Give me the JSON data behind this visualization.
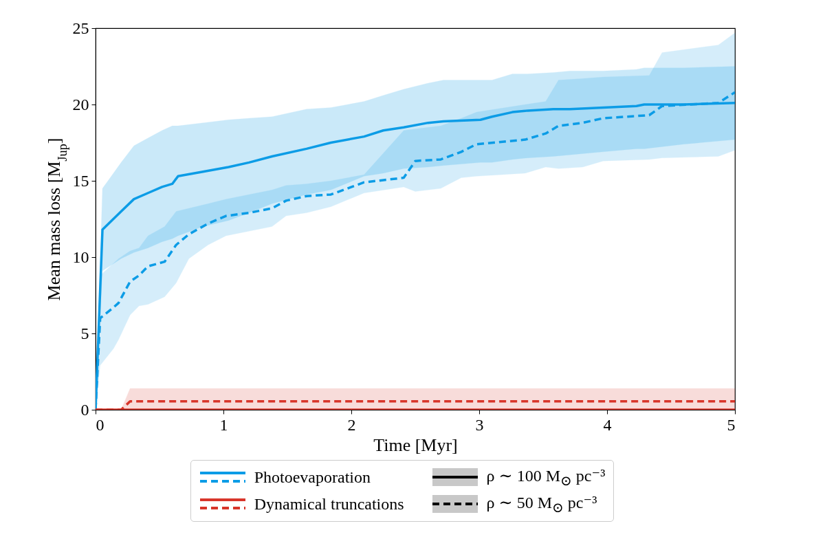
{
  "chart_data": {
    "type": "line",
    "xlabel": "Time [Myr]",
    "ylabel": "Mean mass loss [M$_{Jup}$]",
    "xlim": [
      0,
      5
    ],
    "ylim": [
      0,
      25
    ],
    "xticks": [
      0,
      1,
      2,
      3,
      4,
      5
    ],
    "yticks": [
      0,
      5,
      10,
      15,
      20,
      25
    ],
    "grid": false,
    "legend": "bottom",
    "annotations": [
      "ρ ∼ 100 M$_{⊙}$ pc⁻³",
      "ρ ∼ 50 M$_{⊙}$ pc⁻³"
    ],
    "series": [
      {
        "name": "Photoevaporation",
        "color": "#0c9ce6",
        "line_style": "solid",
        "x": [
          0,
          0.054,
          0.2,
          0.3,
          0.41,
          0.52,
          0.6,
          0.645,
          0.84,
          1.04,
          1.2,
          1.38,
          1.65,
          1.84,
          2.1,
          2.25,
          2.41,
          2.6,
          2.72,
          3.01,
          3.1,
          3.26,
          3.38,
          3.58,
          3.71,
          3.97,
          4.23,
          4.29,
          4.6,
          5
        ],
        "values": [
          0,
          11.8,
          13.0,
          13.8,
          14.2,
          14.6,
          14.8,
          15.3,
          15.6,
          15.9,
          16.2,
          16.6,
          17.1,
          17.5,
          17.9,
          18.3,
          18.5,
          18.8,
          18.9,
          19.0,
          19.2,
          19.5,
          19.6,
          19.7,
          19.7,
          19.8,
          19.9,
          20.0,
          20.0,
          20.1
        ],
        "lower": [
          0,
          9.1,
          9.9,
          10.3,
          10.6,
          11.0,
          11.2,
          11.4,
          12.0,
          12.4,
          12.9,
          13.5,
          14.1,
          14.4,
          15.3,
          15.5,
          15.8,
          15.9,
          16.0,
          16.2,
          16.2,
          16.4,
          16.5,
          16.6,
          16.7,
          16.9,
          17.1,
          17.1,
          17.4,
          17.7
        ],
        "upper": [
          0,
          14.5,
          16.2,
          17.3,
          17.8,
          18.3,
          18.6,
          18.6,
          18.8,
          19.0,
          19.1,
          19.2,
          19.7,
          19.8,
          20.2,
          20.6,
          21.0,
          21.4,
          21.6,
          21.6,
          21.6,
          22.0,
          22.0,
          22.1,
          22.2,
          22.2,
          22.3,
          22.4,
          22.4,
          22.5
        ]
      },
      {
        "color": "#0c9ce6",
        "line_style": "dashed",
        "x": [
          0,
          0.036,
          0.14,
          0.18,
          0.27,
          0.34,
          0.41,
          0.54,
          0.63,
          0.73,
          0.88,
          1.02,
          1.2,
          1.38,
          1.49,
          1.65,
          1.84,
          2.1,
          2.41,
          2.5,
          2.7,
          2.86,
          2.98,
          3.36,
          3.52,
          3.62,
          3.81,
          3.97,
          4.33,
          4.43,
          4.87,
          5
        ],
        "values": [
          0,
          6.0,
          6.7,
          7.0,
          8.4,
          8.8,
          9.4,
          9.7,
          10.8,
          11.5,
          12.2,
          12.7,
          12.9,
          13.2,
          13.7,
          14.0,
          14.1,
          14.9,
          15.2,
          16.3,
          16.4,
          16.9,
          17.4,
          17.7,
          18.1,
          18.6,
          18.8,
          19.1,
          19.3,
          19.9,
          20.1,
          20.8
        ],
        "lower": [
          0,
          2.9,
          4.0,
          4.6,
          6.2,
          6.8,
          6.9,
          7.4,
          8.3,
          9.9,
          10.8,
          11.4,
          11.7,
          12.0,
          12.7,
          12.9,
          13.3,
          14.2,
          14.6,
          14.3,
          14.5,
          15.2,
          15.3,
          15.5,
          15.9,
          15.8,
          15.9,
          16.3,
          16.4,
          16.5,
          16.6,
          17.0
        ],
        "upper": [
          0,
          8.8,
          9.6,
          9.9,
          10.4,
          10.6,
          11.4,
          12.0,
          13.0,
          13.2,
          13.5,
          13.8,
          14.1,
          14.4,
          14.7,
          14.8,
          15.0,
          15.4,
          18.3,
          18.4,
          18.6,
          19.1,
          19.5,
          20.0,
          20.2,
          21.6,
          21.7,
          21.8,
          21.9,
          23.4,
          23.9,
          24.7
        ]
      },
      {
        "name": "Dynamical truncations",
        "color": "#d8352a",
        "line_style": "solid",
        "x": [
          0,
          5
        ],
        "values": [
          0,
          0
        ]
      },
      {
        "color": "#d8352a",
        "line_style": "dashed",
        "x": [
          0,
          0.2,
          0.27,
          5
        ],
        "values": [
          0,
          0,
          0.55,
          0.55
        ],
        "lower": [
          0,
          0,
          0,
          0
        ],
        "upper": [
          0,
          0,
          1.4,
          1.4
        ]
      }
    ]
  }
}
